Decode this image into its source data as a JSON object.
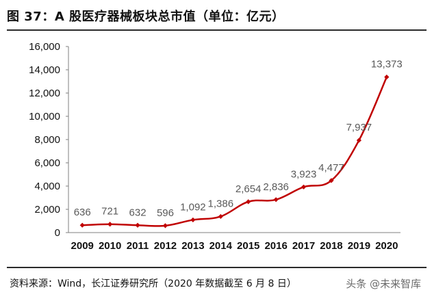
{
  "figure": {
    "title": "图 37：A 股医疗器械板块总市值（单位：亿元）",
    "source": "资料来源：Wind，长江证券研究所（2020 年数据截至 6 月 8 日）",
    "watermark": "头条 @未来智库"
  },
  "colors": {
    "line": "#c00000",
    "axis": "#7f7f7f",
    "text": "#111111",
    "label": "#595959"
  },
  "chart_data": {
    "type": "line",
    "title": "",
    "xlabel": "",
    "ylabel": "",
    "categories": [
      "2009",
      "2010",
      "2011",
      "2012",
      "2013",
      "2014",
      "2015",
      "2016",
      "2017",
      "2018",
      "2019",
      "2020"
    ],
    "values": [
      636,
      721,
      632,
      596,
      1092,
      1386,
      2654,
      2836,
      3923,
      4477,
      7937,
      13373
    ],
    "data_labels": [
      "636",
      "721",
      "632",
      "596",
      "1,092",
      "1,386",
      "2,654",
      "2,836",
      "3,923",
      "4,477",
      "7,937",
      "13,373"
    ],
    "ylim": [
      0,
      16000
    ],
    "yticks": [
      0,
      2000,
      4000,
      6000,
      8000,
      10000,
      12000,
      14000,
      16000
    ],
    "ytick_labels": [
      "0",
      "2,000",
      "4,000",
      "6,000",
      "8,000",
      "10,000",
      "12,000",
      "14,000",
      "16,000"
    ],
    "grid": false,
    "legend": "none",
    "smooth": true,
    "marker": "diamond"
  }
}
